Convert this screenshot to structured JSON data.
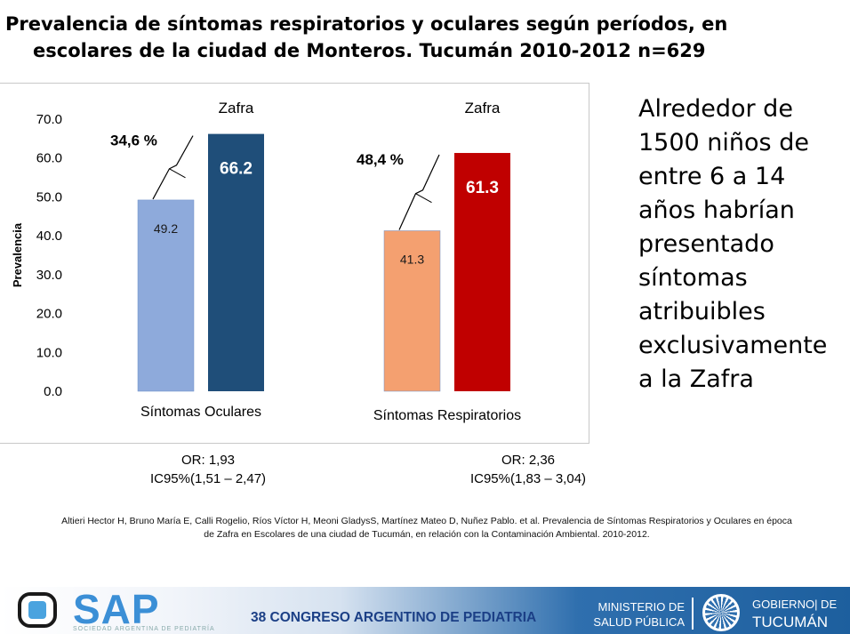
{
  "title": {
    "line1": "Prevalencia de síntomas respiratorios y oculares según períodos, en",
    "line2": "escolares de la ciudad de Monteros. Tucumán 2010-2012 n=629"
  },
  "chart_data": {
    "type": "bar",
    "ylabel": "Prevalencia",
    "ylim": [
      0,
      70
    ],
    "yticks": [
      "0.0",
      "10.0",
      "20.0",
      "30.0",
      "40.0",
      "50.0",
      "60.0",
      "70.0"
    ],
    "grid": false,
    "groups": [
      {
        "category": "Síntomas Oculares",
        "values": [
          49.2,
          66.2
        ],
        "labels": [
          "49.2",
          "66.2"
        ],
        "top_label": "Zafra",
        "increase_label": "34,6 %",
        "colors": [
          "#8eaadb",
          "#1f4e79"
        ],
        "label_colors": [
          "#1a1a1a",
          "#ffffff"
        ]
      },
      {
        "category": "Síntomas Respiratorios",
        "values": [
          41.3,
          61.3
        ],
        "labels": [
          "41.3",
          "61.3"
        ],
        "top_label": "Zafra",
        "increase_label": "48,4 %",
        "colors": [
          "#f4a070",
          "#c00000"
        ],
        "label_colors": [
          "#1a1a1a",
          "#ffffff"
        ]
      }
    ]
  },
  "stats": [
    {
      "or": "OR: 1,93",
      "ic": "IC95%(1,51 – 2,47)"
    },
    {
      "or": "OR: 2,36",
      "ic": "IC95%(1,83 – 3,04)"
    }
  ],
  "side_text": "Alrededor de 1500 niños de entre 6 a 14 años habrían presentado síntomas atribuibles exclusivamente a la Zafra",
  "citation": {
    "line1": "Altieri Hector H, Bruno María E, Calli Rogelio, Ríos Víctor H, Meoni GladysS, Martínez Mateo D, Nuñez Pablo. et al. Prevalencia de Síntomas Respiratorios y Oculares en época",
    "line2": "de Zafra en Escolares de una ciudad de Tucumán, en relación con la Contaminación Ambiental. 2010-2012."
  },
  "footer": {
    "sap_logo": "SAP",
    "sap_subtitle": "SOCIEDAD ARGENTINA DE PEDIATRÍA",
    "congress": "38 CONGRESO ARGENTINO DE PEDIATRIA",
    "ministry_line1": "MINISTERIO DE",
    "ministry_line2": "SALUD PÚBLICA",
    "gov_line1": "GOBIERNO| DE",
    "gov_line2": "TUCUMÁN"
  }
}
